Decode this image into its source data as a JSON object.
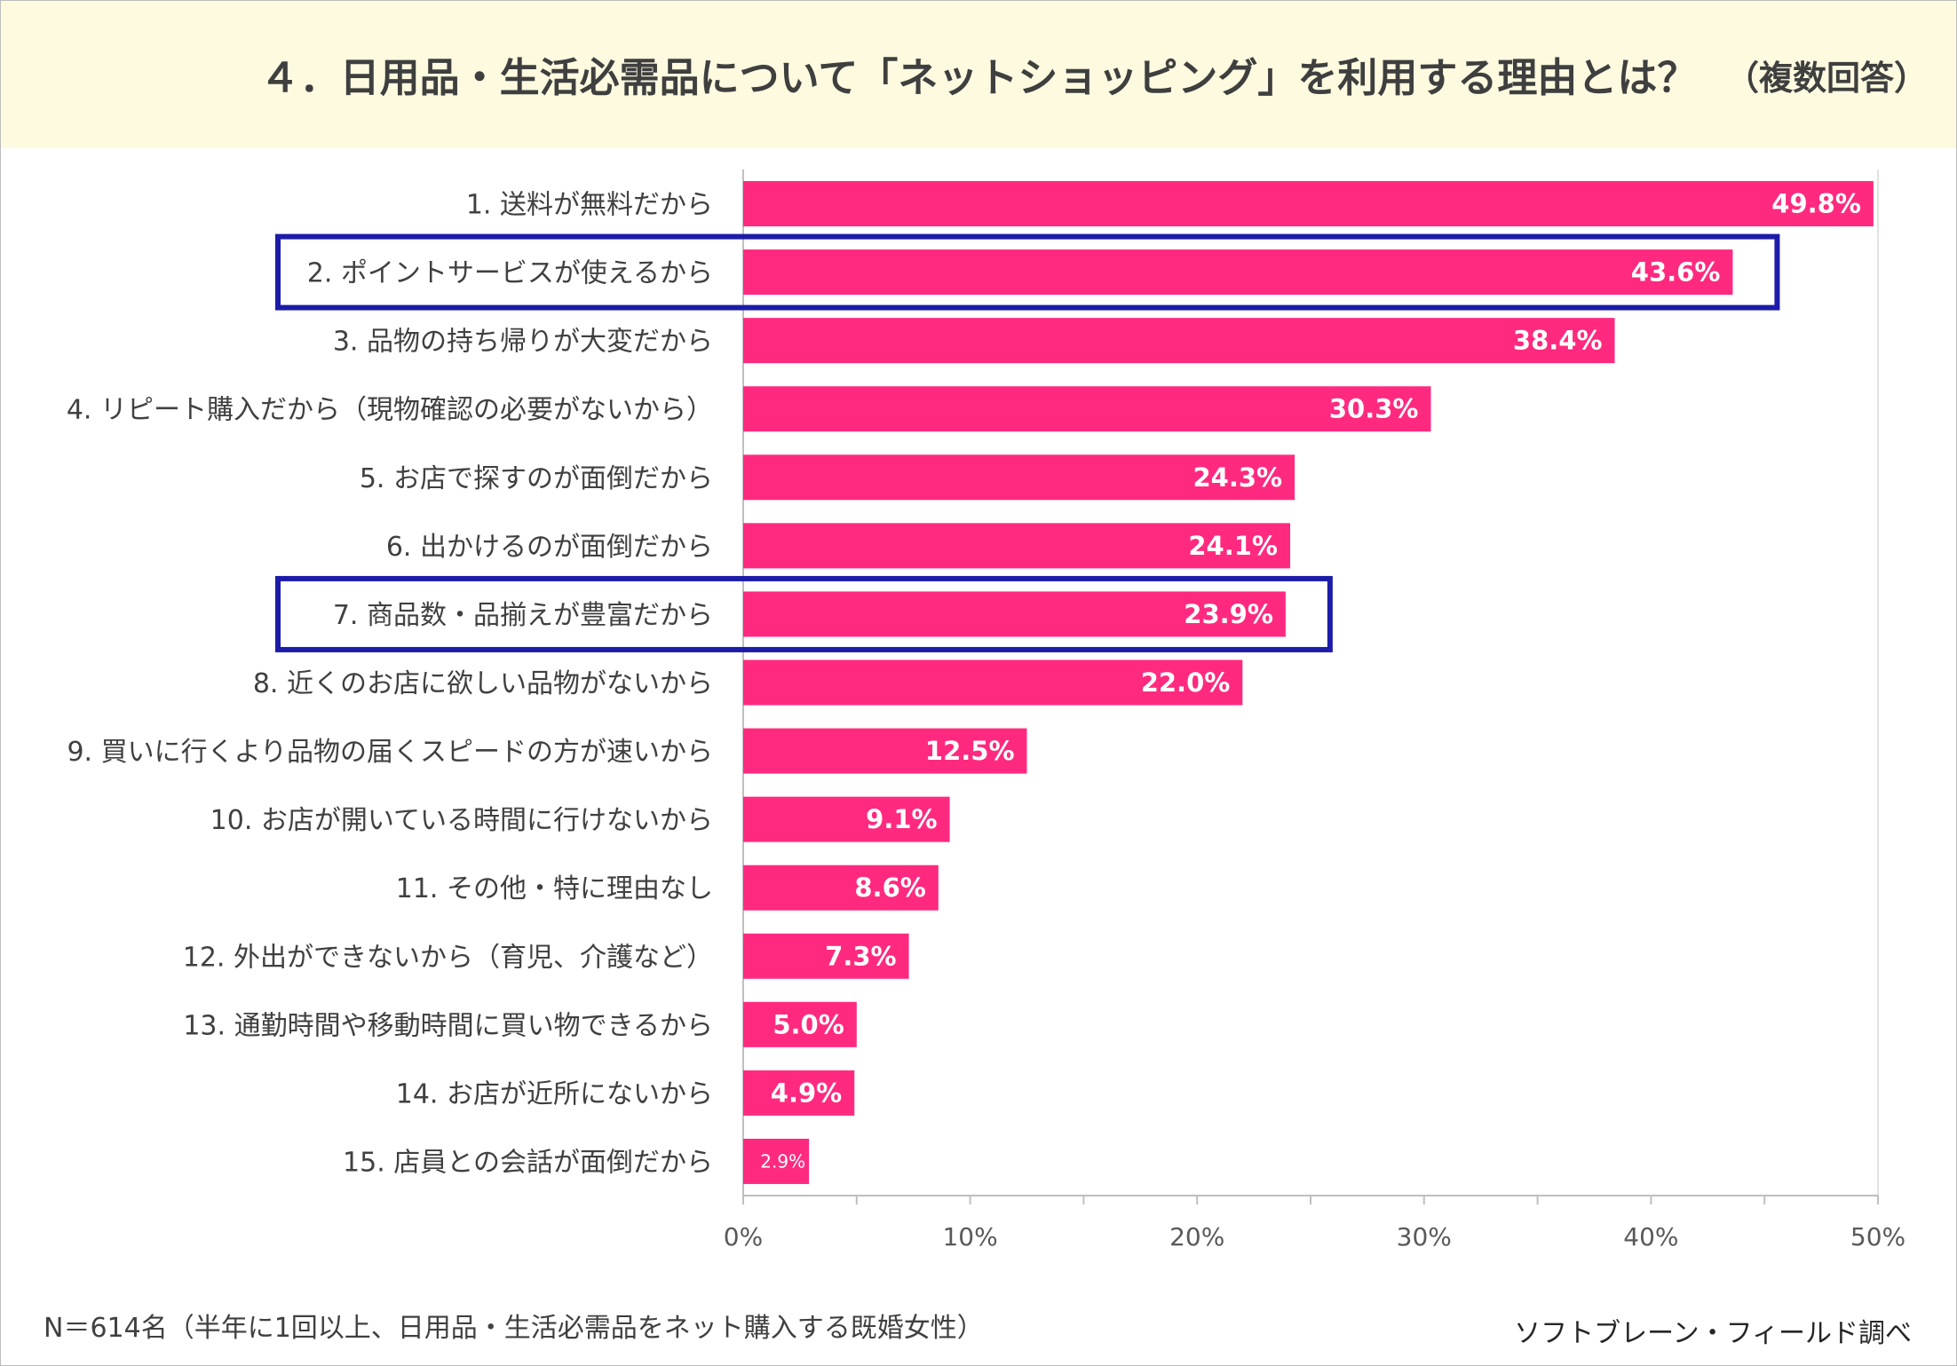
{
  "page": {
    "title": "４．日用品・生活必需品について「ネットショッピング」を利用する理由とは？",
    "subtitle": "（複数回答）",
    "footer_note": "N＝614名（半年に1回以上、日用品・生活必需品をネット購入する既婚女性）",
    "source": "ソフトブレーン・フィールド調べ"
  },
  "colors": {
    "header_bg": "#fdfae0",
    "bar": "#ff2a7f",
    "highlight_box": "#1c1ca8",
    "grid": "#d9d9d9",
    "axis": "#bfbfbf",
    "text": "#404040"
  },
  "chart_data": {
    "type": "bar",
    "orientation": "horizontal",
    "categories": [
      "1. 送料が無料だから",
      "2. ポイントサービスが使えるから",
      "3. 品物の持ち帰りが大変だから",
      "4. リピート購入だから（現物確認の必要がないから）",
      "5. お店で探すのが面倒だから",
      "6. 出かけるのが面倒だから",
      "7. 商品数・品揃えが豊富だから",
      "8. 近くのお店に欲しい品物がないから",
      "9. 買いに行くより品物の届くスピードの方が速いから",
      "10. お店が開いている時間に行けないから",
      "11. その他・特に理由なし",
      "12. 外出ができないから（育児、介護など）",
      "13. 通勤時間や移動時間に買い物できるから",
      "14. お店が近所にないから",
      "15. 店員との会話が面倒だから"
    ],
    "values": [
      49.8,
      43.6,
      38.4,
      30.3,
      24.3,
      24.1,
      23.9,
      22.0,
      12.5,
      9.1,
      8.6,
      7.3,
      5.0,
      4.9,
      2.9
    ],
    "value_labels": [
      "49.8%",
      "43.6%",
      "38.4%",
      "30.3%",
      "24.3%",
      "24.1%",
      "23.9%",
      "22.0%",
      "12.5%",
      "9.1%",
      "8.6%",
      "7.3%",
      "5.0%",
      "4.9%",
      "2.9%"
    ],
    "xlim": [
      0,
      50
    ],
    "xticks": [
      "0%",
      "10%",
      "20%",
      "30%",
      "40%",
      "50%"
    ],
    "unit": "%",
    "highlighted": [
      1,
      6
    ]
  }
}
